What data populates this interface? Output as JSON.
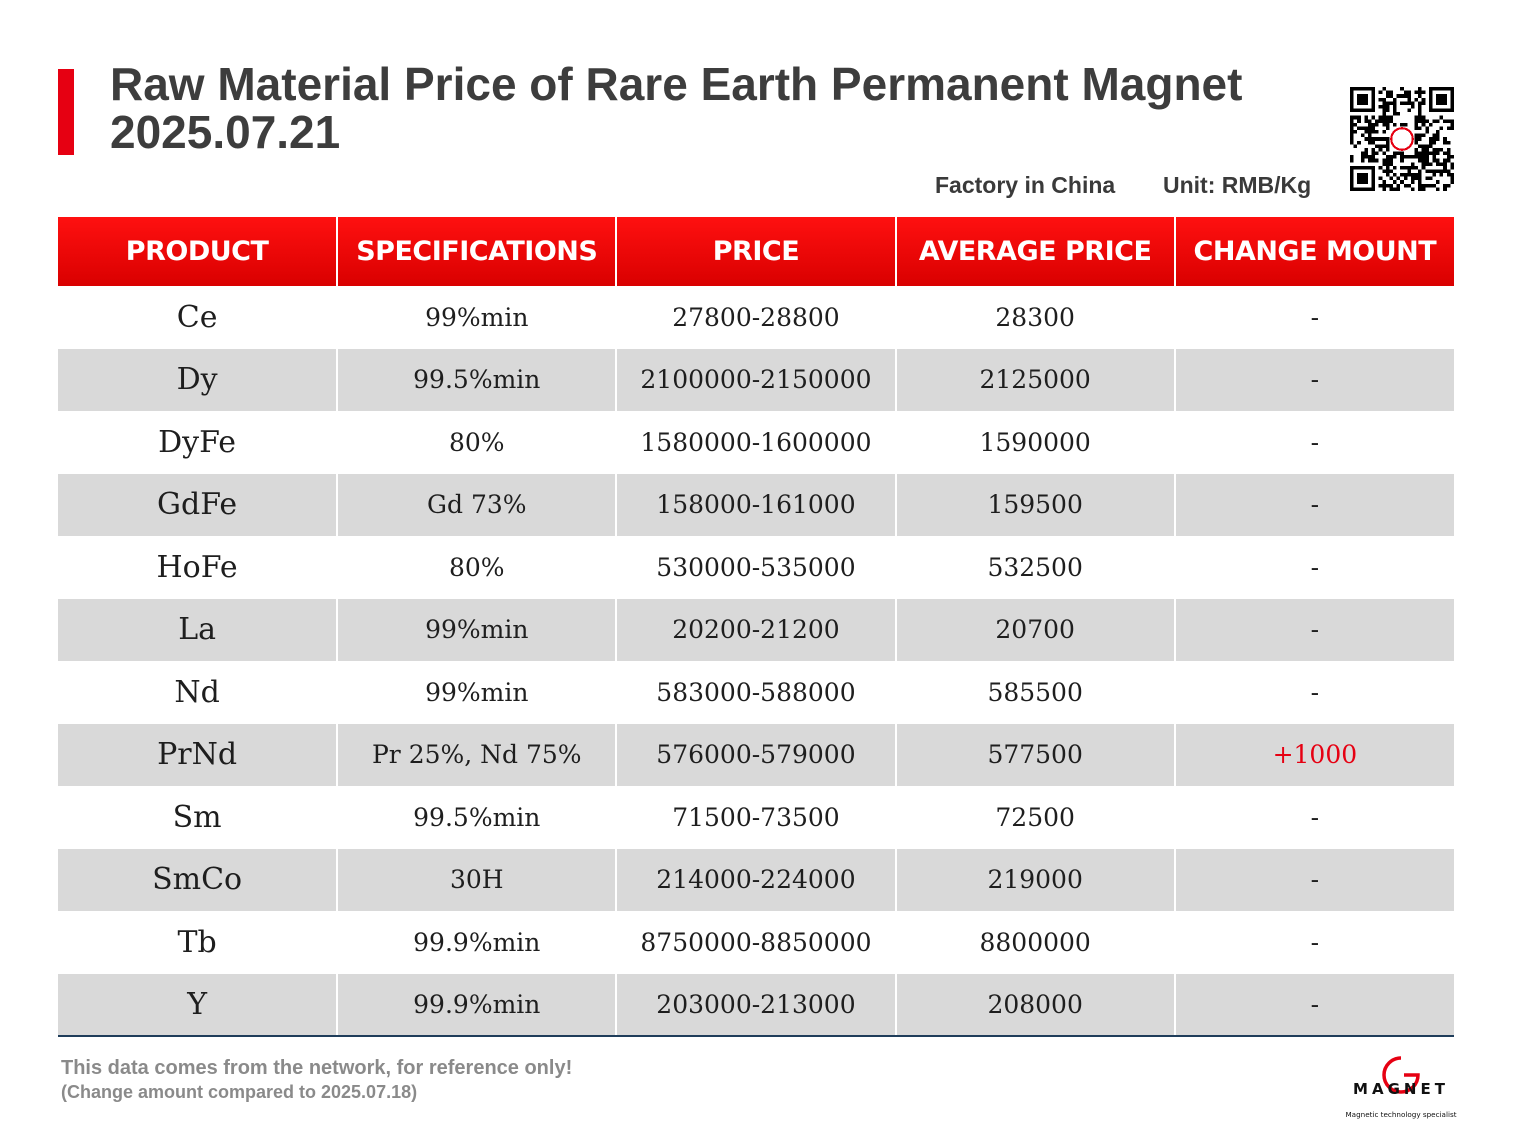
{
  "header": {
    "title_line1": "Raw Material Price of Rare Earth Permanent Magnet",
    "title_line2": "2025.07.21",
    "factory": "Factory in China",
    "unit": "Unit: RMB/Kg",
    "accent_color": "#e60012"
  },
  "table": {
    "columns": [
      "PRODUCT",
      "SPECIFICATIONS",
      "PRICE",
      "AVERAGE PRICE",
      "CHANGE MOUNT"
    ],
    "rows": [
      {
        "product": "Ce",
        "spec": "99%min",
        "price": "27800-28800",
        "avg": "28300",
        "change": "-"
      },
      {
        "product": "Dy",
        "spec": "99.5%min",
        "price": "2100000-2150000",
        "avg": "2125000",
        "change": "-"
      },
      {
        "product": "DyFe",
        "spec": "80%",
        "price": "1580000-1600000",
        "avg": "1590000",
        "change": "-"
      },
      {
        "product": "GdFe",
        "spec": "Gd 73%",
        "price": "158000-161000",
        "avg": "159500",
        "change": "-"
      },
      {
        "product": "HoFe",
        "spec": "80%",
        "price": "530000-535000",
        "avg": "532500",
        "change": "-"
      },
      {
        "product": "La",
        "spec": "99%min",
        "price": "20200-21200",
        "avg": "20700",
        "change": "-"
      },
      {
        "product": "Nd",
        "spec": "99%min",
        "price": "583000-588000",
        "avg": "585500",
        "change": "-"
      },
      {
        "product": "PrNd",
        "spec": "Pr 25%, Nd 75%",
        "price": "576000-579000",
        "avg": "577500",
        "change": "+1000"
      },
      {
        "product": "Sm",
        "spec": "99.5%min",
        "price": "71500-73500",
        "avg": "72500",
        "change": "-"
      },
      {
        "product": "SmCo",
        "spec": "30H",
        "price": "214000-224000",
        "avg": "219000",
        "change": "-"
      },
      {
        "product": "Tb",
        "spec": "99.9%min",
        "price": "8750000-8850000",
        "avg": "8800000",
        "change": "-"
      },
      {
        "product": "Y",
        "spec": "99.9%min",
        "price": "203000-213000",
        "avg": "208000",
        "change": "-"
      }
    ]
  },
  "footer": {
    "note": "This data comes from the network, for reference only!",
    "compare": "(Change amount compared to 2025.07.18)"
  },
  "logo": {
    "name": "MAGNET",
    "tagline": "Magnetic technology specialist"
  },
  "icons": {
    "qr": "qr-code-icon",
    "logo": "magnet-logo-icon"
  }
}
